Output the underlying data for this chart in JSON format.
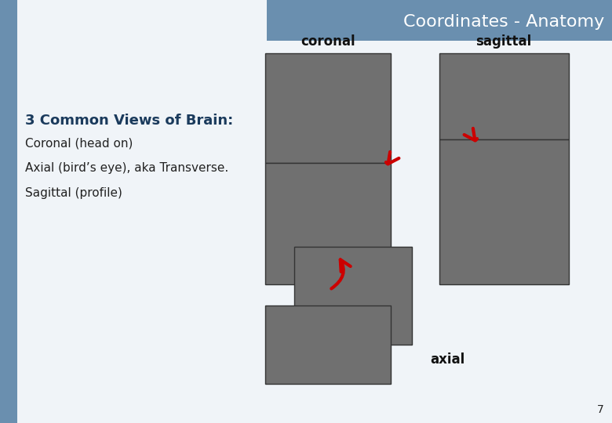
{
  "title": "Coordinates - Anatomy",
  "title_bg_color": "#6a8faf",
  "title_text_color": "#ffffff",
  "left_bar_color": "#6a8faf",
  "background_color": "#f0f4f8",
  "heading": "3 Common Views of Brain:",
  "heading_color": "#1a3a5c",
  "heading_fontsize": 13,
  "body_lines": [
    "Coronal (head on)",
    "Axial (bird’s eye), aka Transverse.",
    "Sagittal (profile)"
  ],
  "body_color": "#222222",
  "body_fontsize": 11,
  "label_coronal": "coronal",
  "label_sagittal": "sagittal",
  "label_axial": "axial",
  "label_fontsize": 12,
  "label_color": "#111111",
  "page_number": "7",
  "arrow_color": "#cc0000"
}
